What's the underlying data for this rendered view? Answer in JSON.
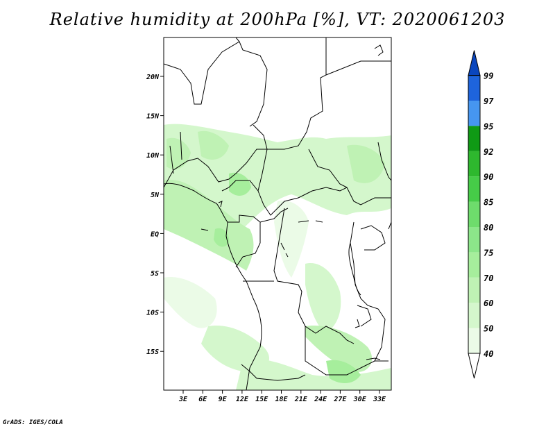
{
  "title": "Relative humidity at 200hPa [%], VT: 2020061203",
  "credit": "GrADS: IGES/COLA",
  "map": {
    "lon_ticks": [
      "3E",
      "6E",
      "9E",
      "12E",
      "15E",
      "18E",
      "21E",
      "24E",
      "27E",
      "30E",
      "33E"
    ],
    "lat_ticks": [
      "20N",
      "15N",
      "10N",
      "5N",
      "EQ",
      "5S",
      "10S",
      "15S"
    ]
  },
  "colorbar": {
    "levels": [
      "40",
      "50",
      "60",
      "70",
      "75",
      "80",
      "85",
      "90",
      "92",
      "95",
      "97",
      "99"
    ],
    "colors": [
      "#ffffff",
      "#ebfbe7",
      "#d4f7cc",
      "#bff2b4",
      "#a6ee9c",
      "#8ce68a",
      "#6edc6c",
      "#46cc48",
      "#2eb82e",
      "#0f9a15",
      "#4696f0",
      "#1e64dc",
      "#0a46be"
    ]
  }
}
